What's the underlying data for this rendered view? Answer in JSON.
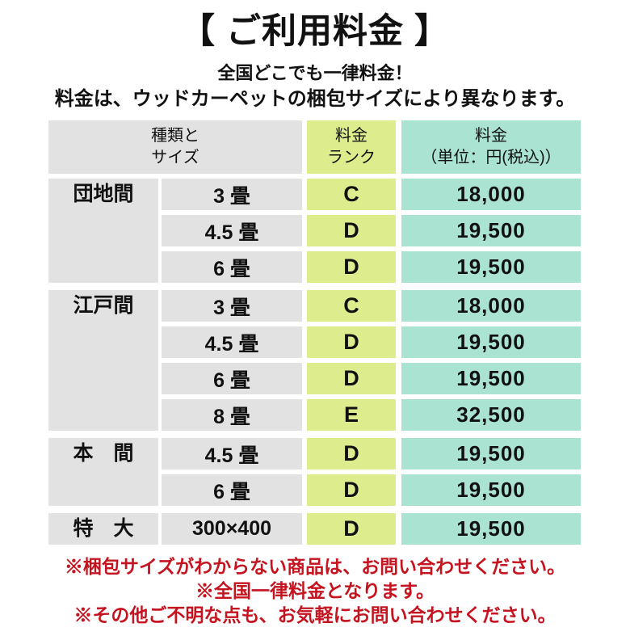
{
  "header": {
    "title": "【 ご利用料金 】",
    "subtitle_line1": "全国どこでも一律料金！",
    "subtitle_line2": "料金は、ウッドカーペットの梱包サイズにより異なります。"
  },
  "table": {
    "header": {
      "type_line1": "種類と",
      "type_line2": "サイズ",
      "rank_line1": "料金",
      "rank_line2": "ランク",
      "price_line1": "料金",
      "price_line2": "（単位：円(税込)）"
    },
    "groups": [
      {
        "label": "団地間",
        "rows": [
          {
            "size": "3 畳",
            "rank": "C",
            "price": "18,000"
          },
          {
            "size": "4.5 畳",
            "rank": "D",
            "price": "19,500"
          },
          {
            "size": "6 畳",
            "rank": "D",
            "price": "19,500"
          }
        ]
      },
      {
        "label": "江戸間",
        "rows": [
          {
            "size": "3 畳",
            "rank": "C",
            "price": "18,000"
          },
          {
            "size": "4.5 畳",
            "rank": "D",
            "price": "19,500"
          },
          {
            "size": "6 畳",
            "rank": "D",
            "price": "19,500"
          },
          {
            "size": "8 畳",
            "rank": "E",
            "price": "32,500"
          }
        ]
      },
      {
        "label": "本　間",
        "rows": [
          {
            "size": "4.5 畳",
            "rank": "D",
            "price": "19,500"
          },
          {
            "size": "6 畳",
            "rank": "D",
            "price": "19,500"
          }
        ]
      },
      {
        "label": "特　大",
        "rows": [
          {
            "size": "300×400",
            "rank": "D",
            "price": "19,500"
          }
        ]
      }
    ]
  },
  "notes": [
    "※梱包サイズがわからない商品は、お問い合わせください。",
    "※全国一律料金となります。",
    "※その他ご不明な点も、お気軽にお問い合わせください。"
  ],
  "colors": {
    "cell_gray": "#e2e2e2",
    "rank_bg": "#dded8e",
    "price_bg": "#aae3d2",
    "note_red": "#c5141f",
    "text": "#111111"
  }
}
